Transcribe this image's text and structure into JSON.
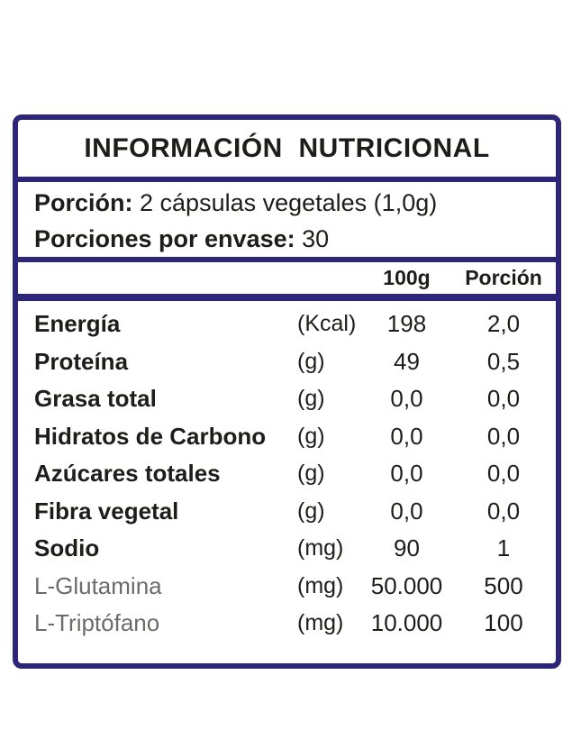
{
  "label": {
    "title": "INFORMACIÓN  NUTRICIONAL",
    "serving": {
      "line1_label": "Porción:",
      "line1_value": " 2 cápsulas vegetales (1,0g)",
      "line2_label": "Porciones por envase:",
      "line2_value": " 30"
    },
    "columns": {
      "per100_header": "100g",
      "portion_header": "Porción"
    },
    "rows": [
      {
        "name": "Energía",
        "unit": "(Kcal)",
        "per100": "198",
        "portion": "2,0",
        "style": "bold"
      },
      {
        "name": "Proteína",
        "unit": "(g)",
        "per100": "49",
        "portion": "0,5",
        "style": "bold"
      },
      {
        "name": "Grasa total",
        "unit": "(g)",
        "per100": "0,0",
        "portion": "0,0",
        "style": "bold"
      },
      {
        "name": "Hidratos de Carbono",
        "unit": "(g)",
        "per100": "0,0",
        "portion": "0,0",
        "style": "bold"
      },
      {
        "name": "Azúcares totales",
        "unit": "(g)",
        "per100": "0,0",
        "portion": "0,0",
        "style": "bold"
      },
      {
        "name": "Fibra vegetal",
        "unit": "(g)",
        "per100": "0,0",
        "portion": "0,0",
        "style": "bold"
      },
      {
        "name": "Sodio",
        "unit": "(mg)",
        "per100": "90",
        "portion": "1",
        "style": "bold"
      },
      {
        "name": "L-Glutamina",
        "unit": "(mg)",
        "per100": "50.000",
        "portion": "500",
        "style": "light"
      },
      {
        "name": "L-Triptófano",
        "unit": "(mg)",
        "per100": "10.000",
        "portion": "100",
        "style": "light"
      }
    ],
    "colors": {
      "border_navy": "#2d2577",
      "text_black": "#1d1d1b",
      "text_gray": "#6b6b6a"
    }
  }
}
